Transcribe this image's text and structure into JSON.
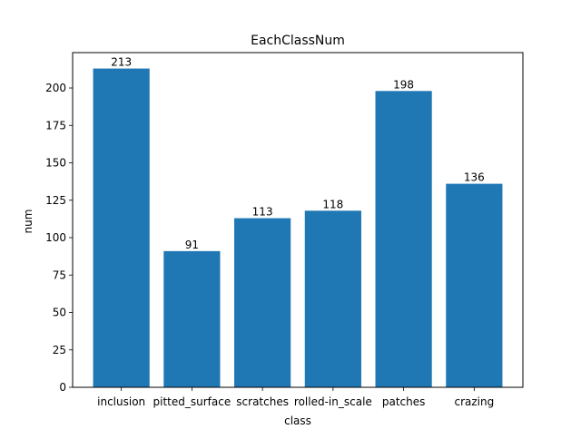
{
  "chart_data": {
    "type": "bar",
    "title": "EachClassNum",
    "xlabel": "class",
    "ylabel": "num",
    "categories": [
      "inclusion",
      "pitted_surface",
      "scratches",
      "rolled-in_scale",
      "patches",
      "crazing"
    ],
    "values": [
      213,
      91,
      113,
      118,
      198,
      136
    ],
    "data_labels": [
      "213",
      "91",
      "113",
      "118",
      "198",
      "136"
    ],
    "ylim": [
      0,
      223.65
    ],
    "yticks": [
      0,
      25,
      50,
      75,
      100,
      125,
      150,
      175,
      200
    ],
    "grid": false,
    "legend": "none",
    "bar_color": "#1f77b4"
  }
}
